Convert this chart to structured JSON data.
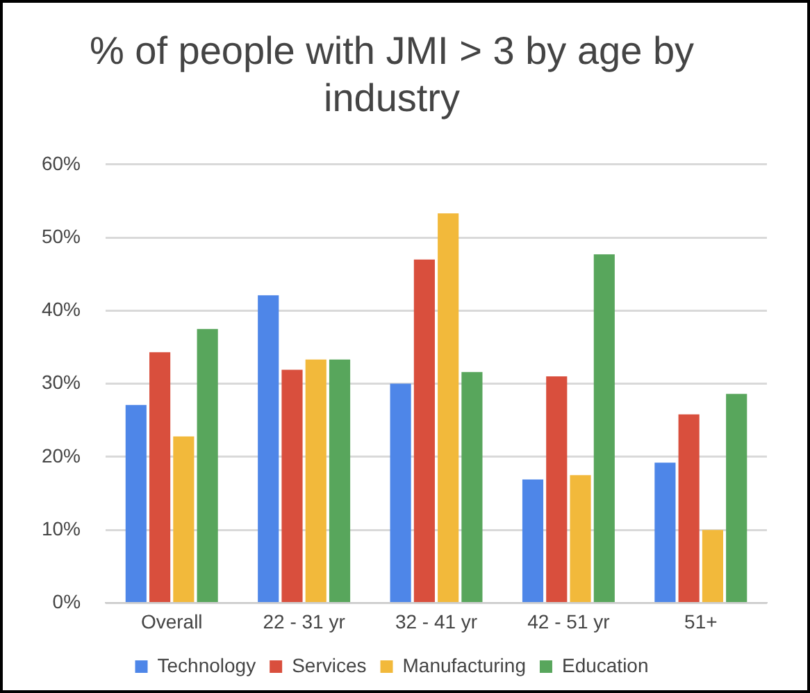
{
  "chart_data": {
    "type": "bar",
    "title": "% of people with JMI > 3 by age by industry",
    "categories": [
      "Overall",
      "22 - 31 yr",
      "32 - 41 yr",
      "42 - 51 yr",
      "51+"
    ],
    "series": [
      {
        "name": "Technology",
        "color": "#4e86e8",
        "values": [
          27.1,
          42.1,
          30.0,
          16.9,
          19.2
        ]
      },
      {
        "name": "Services",
        "color": "#d94f3d",
        "values": [
          34.3,
          31.9,
          47.0,
          31.0,
          25.8
        ]
      },
      {
        "name": "Manufacturing",
        "color": "#f2b93b",
        "values": [
          22.8,
          33.3,
          53.3,
          17.5,
          10.0
        ]
      },
      {
        "name": "Education",
        "color": "#58a65c",
        "values": [
          37.5,
          33.3,
          31.6,
          47.7,
          28.6
        ]
      }
    ],
    "ylim": [
      0,
      60
    ],
    "yticks": [
      {
        "value": 0,
        "label": "0%"
      },
      {
        "value": 10,
        "label": "10%"
      },
      {
        "value": 20,
        "label": "20%"
      },
      {
        "value": 30,
        "label": "30%"
      },
      {
        "value": 40,
        "label": "40%"
      },
      {
        "value": 50,
        "label": "50%"
      },
      {
        "value": 60,
        "label": "60%"
      }
    ],
    "grid": "y",
    "legend": "bottom"
  }
}
